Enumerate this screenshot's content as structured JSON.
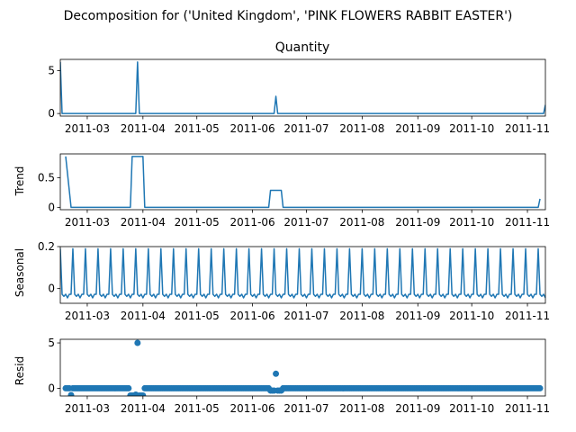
{
  "figure": {
    "suptitle": "Decomposition for ('United Kingdom', 'PINK FLOWERS RABBIT EASTER')"
  },
  "colors": {
    "line": "#1f77b4",
    "axis": "#000000"
  },
  "chart_data": [
    {
      "type": "line",
      "title": "Quantity",
      "ylabel": "",
      "ylim": [
        -0.3,
        6.3
      ],
      "yticks": [
        0,
        5
      ],
      "xlim": [
        "2011-02-14",
        "2011-11-11"
      ],
      "xticks": [
        "2011-03",
        "2011-04",
        "2011-05",
        "2011-06",
        "2011-07",
        "2011-08",
        "2011-09",
        "2011-10",
        "2011-11"
      ],
      "points": [
        [
          "2011-02-14",
          6
        ],
        [
          "2011-02-15",
          0
        ],
        [
          "2011-03-28",
          0
        ],
        [
          "2011-03-29",
          6
        ],
        [
          "2011-03-30",
          0
        ],
        [
          "2011-06-13",
          0
        ],
        [
          "2011-06-14",
          2
        ],
        [
          "2011-06-15",
          0
        ],
        [
          "2011-11-10",
          0
        ],
        [
          "2011-11-11",
          1
        ]
      ]
    },
    {
      "type": "line",
      "title": "",
      "ylabel": "Trend",
      "ylim": [
        -0.04,
        0.9
      ],
      "yticks": [
        0.0,
        0.5
      ],
      "xlim": [
        "2011-02-14",
        "2011-11-11"
      ],
      "xticks": [
        "2011-03",
        "2011-04",
        "2011-05",
        "2011-06",
        "2011-07",
        "2011-08",
        "2011-09",
        "2011-10",
        "2011-11"
      ],
      "points": [
        [
          "2011-02-17",
          0.857
        ],
        [
          "2011-02-20",
          0
        ],
        [
          "2011-03-25",
          0
        ],
        [
          "2011-03-26",
          0.857
        ],
        [
          "2011-04-01",
          0.857
        ],
        [
          "2011-04-02",
          0
        ],
        [
          "2011-06-10",
          0
        ],
        [
          "2011-06-11",
          0.286
        ],
        [
          "2011-06-17",
          0.286
        ],
        [
          "2011-06-18",
          0
        ],
        [
          "2011-11-07",
          0
        ],
        [
          "2011-11-08",
          0.143
        ]
      ]
    },
    {
      "type": "line",
      "title": "",
      "ylabel": "Seasonal",
      "ylim": [
        -0.07,
        0.2
      ],
      "yticks": [
        0.0,
        0.2
      ],
      "xlim": [
        "2011-02-14",
        "2011-11-11"
      ],
      "xticks": [
        "2011-03",
        "2011-04",
        "2011-05",
        "2011-06",
        "2011-07",
        "2011-08",
        "2011-09",
        "2011-10",
        "2011-11"
      ],
      "pattern": {
        "start": "2011-02-14",
        "end": "2011-11-11",
        "period_days": 7,
        "weekly_values": [
          0.19,
          -0.027,
          -0.037,
          -0.027,
          -0.044,
          -0.027,
          -0.027
        ]
      }
    },
    {
      "type": "scatter",
      "title": "",
      "ylabel": "Resid",
      "ylim": [
        -0.85,
        5.4
      ],
      "yticks": [
        0,
        5
      ],
      "xlim": [
        "2011-02-14",
        "2011-11-11"
      ],
      "xticks": [
        "2011-03",
        "2011-04",
        "2011-05",
        "2011-06",
        "2011-07",
        "2011-08",
        "2011-09",
        "2011-10",
        "2011-11"
      ],
      "baseline": {
        "start": "2011-02-17",
        "end": "2011-11-08",
        "value": 0.0
      },
      "outliers": [
        [
          "2011-02-20",
          -0.75
        ],
        [
          "2011-03-25",
          -0.8
        ],
        [
          "2011-03-26",
          -0.8
        ],
        [
          "2011-03-27",
          -0.8
        ],
        [
          "2011-03-28",
          -0.7
        ],
        [
          "2011-03-29",
          5.0
        ],
        [
          "2011-03-30",
          -0.8
        ],
        [
          "2011-03-31",
          -0.8
        ],
        [
          "2011-04-01",
          -0.8
        ],
        [
          "2011-06-11",
          -0.25
        ],
        [
          "2011-06-12",
          -0.25
        ],
        [
          "2011-06-13",
          -0.25
        ],
        [
          "2011-06-14",
          1.6
        ],
        [
          "2011-06-15",
          -0.25
        ],
        [
          "2011-06-16",
          -0.25
        ],
        [
          "2011-06-17",
          -0.25
        ]
      ]
    }
  ]
}
